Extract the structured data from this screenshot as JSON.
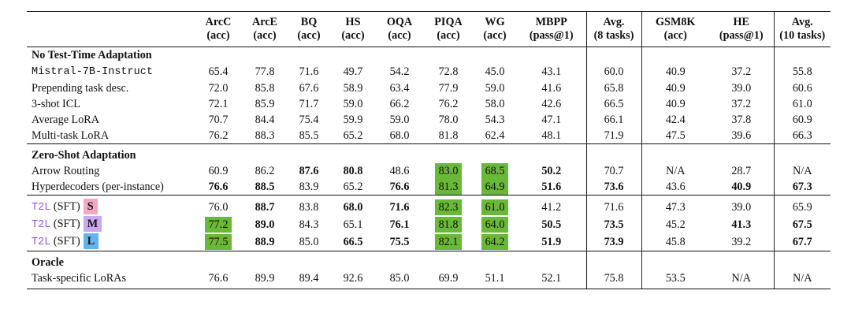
{
  "headers": [
    {
      "name": "ArcC",
      "metric": "(acc)"
    },
    {
      "name": "ArcE",
      "metric": "(acc)"
    },
    {
      "name": "BQ",
      "metric": "(acc)"
    },
    {
      "name": "HS",
      "metric": "(acc)"
    },
    {
      "name": "OQA",
      "metric": "(acc)"
    },
    {
      "name": "PIQA",
      "metric": "(acc)"
    },
    {
      "name": "WG",
      "metric": "(acc)"
    },
    {
      "name": "MBPP",
      "metric": "(pass@1)"
    },
    {
      "name": "Avg.",
      "metric": "(8 tasks)"
    },
    {
      "name": "GSM8K",
      "metric": "(acc)"
    },
    {
      "name": "HE",
      "metric": "(pass@1)"
    },
    {
      "name": "Avg.",
      "metric": "(10 tasks)"
    }
  ],
  "colors": {
    "highlight": "#6ab838",
    "t2l_text": "#9b51e0",
    "size_S": "#f4a6c2",
    "size_M": "#c9a8f0",
    "size_L": "#62b4f0"
  },
  "sections": [
    {
      "title": "No Test-Time Adaptation",
      "rows": [
        {
          "model": "Mistral-7B-Instruct",
          "style": "mono",
          "values": [
            "65.4",
            "77.8",
            "71.6",
            "49.7",
            "54.2",
            "72.8",
            "45.0",
            "43.1",
            "60.0",
            "40.9",
            "37.2",
            "55.8"
          ]
        },
        {
          "model": "Prepending task desc.",
          "values": [
            "72.0",
            "85.8",
            "67.6",
            "58.9",
            "63.4",
            "77.9",
            "59.0",
            "41.6",
            "65.8",
            "40.9",
            "39.0",
            "60.6"
          ]
        },
        {
          "model": "3-shot ICL",
          "values": [
            "72.1",
            "85.9",
            "71.7",
            "59.0",
            "66.2",
            "76.2",
            "58.0",
            "42.6",
            "66.5",
            "40.9",
            "37.2",
            "61.0"
          ]
        },
        {
          "model": "Average LoRA",
          "values": [
            "70.7",
            "84.4",
            "75.4",
            "59.9",
            "59.0",
            "78.0",
            "54.3",
            "47.1",
            "66.1",
            "42.4",
            "37.8",
            "60.9"
          ]
        },
        {
          "model": "Multi-task LoRA",
          "values": [
            "76.2",
            "88.3",
            "85.5",
            "65.2",
            "68.0",
            "81.8",
            "62.4",
            "48.1",
            "71.9",
            "47.5",
            "39.6",
            "66.3"
          ]
        }
      ]
    },
    {
      "title": "Zero-Shot Adaptation",
      "rows": [
        {
          "model": "Arrow Routing",
          "values": [
            "60.9",
            "86.2",
            "87.6",
            "80.8",
            "48.6",
            "83.0",
            "68.5",
            "50.2",
            "70.7",
            "N/A",
            "28.7",
            "N/A"
          ],
          "bold": [
            2,
            3,
            7
          ],
          "highlight": [
            5,
            6
          ]
        },
        {
          "model": "Hyperdecoders (per-instance)",
          "values": [
            "76.6",
            "88.5",
            "83.9",
            "65.2",
            "76.6",
            "81.3",
            "64.9",
            "51.6",
            "73.6",
            "43.6",
            "40.9",
            "67.3"
          ],
          "bold": [
            0,
            1,
            4,
            7,
            8,
            10,
            11
          ],
          "highlight": [
            5,
            6
          ]
        }
      ]
    },
    {
      "title": "",
      "rows": [
        {
          "model": "T2L",
          "suffix": "(SFT)",
          "size": "S",
          "values": [
            "76.0",
            "88.7",
            "83.8",
            "68.0",
            "71.6",
            "82.3",
            "61.0",
            "41.2",
            "71.6",
            "47.3",
            "39.0",
            "65.9"
          ],
          "bold": [
            1,
            3,
            4
          ],
          "highlight": [
            5,
            6
          ]
        },
        {
          "model": "T2L",
          "suffix": "(SFT)",
          "size": "M",
          "values": [
            "77.2",
            "89.0",
            "84.3",
            "65.1",
            "76.1",
            "81.8",
            "64.0",
            "50.5",
            "73.5",
            "45.2",
            "41.3",
            "67.5"
          ],
          "bold": [
            1,
            4,
            7,
            8,
            10,
            11
          ],
          "highlight": [
            0,
            5,
            6
          ]
        },
        {
          "model": "T2L",
          "suffix": "(SFT)",
          "size": "L",
          "values": [
            "77.5",
            "88.9",
            "85.0",
            "66.5",
            "75.5",
            "82.1",
            "64.2",
            "51.9",
            "73.9",
            "45.8",
            "39.2",
            "67.7"
          ],
          "bold": [
            1,
            3,
            4,
            7,
            8,
            11
          ],
          "highlight": [
            0,
            5,
            6
          ]
        }
      ]
    },
    {
      "title": "Oracle",
      "rows": [
        {
          "model": "Task-specific LoRAs",
          "values": [
            "76.6",
            "89.9",
            "89.4",
            "92.6",
            "85.0",
            "69.9",
            "51.1",
            "52.1",
            "75.8",
            "53.5",
            "N/A",
            "N/A"
          ]
        }
      ]
    }
  ]
}
